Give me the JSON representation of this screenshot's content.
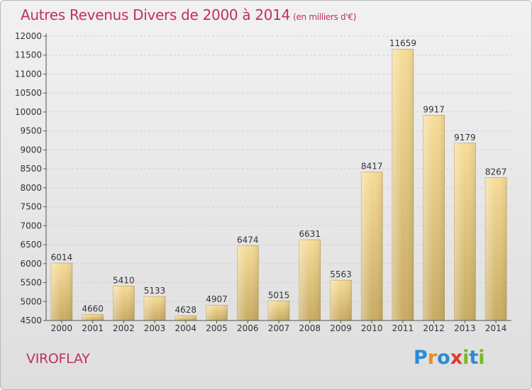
{
  "header": {
    "title": "Autres Revenus Divers de 2000 à 2014",
    "unit": "(en milliers d'€)"
  },
  "footer": {
    "commune": "VIROFLAY",
    "logo": {
      "text": "Proxiti",
      "letters": [
        {
          "ch": "P",
          "color": "#2a8bd4"
        },
        {
          "ch": "r",
          "color": "#f08a1c"
        },
        {
          "ch": "o",
          "color": "#2a8bd4"
        },
        {
          "ch": "x",
          "color": "#e23a2a"
        },
        {
          "ch": "i",
          "color": "#79b82a"
        },
        {
          "ch": "t",
          "color": "#2a8bd4"
        },
        {
          "ch": "i",
          "color": "#79b82a"
        }
      ]
    }
  },
  "colors": {
    "title": "#c0305a",
    "bar_light": "#f7dc98",
    "bar_dark": "#c8ab63",
    "axis": "#555555",
    "grid": "#cfcfcf",
    "text": "#333333"
  },
  "chart_data": {
    "type": "bar",
    "title": "Autres Revenus Divers de 2000 à 2014",
    "unit": "(en milliers d'€)",
    "categories": [
      "2000",
      "2001",
      "2002",
      "2003",
      "2004",
      "2005",
      "2006",
      "2007",
      "2008",
      "2009",
      "2010",
      "2011",
      "2012",
      "2013",
      "2014"
    ],
    "values": [
      6014,
      4660,
      5410,
      5133,
      4628,
      4907,
      6474,
      5015,
      6631,
      5563,
      8417,
      11659,
      9917,
      9179,
      8267
    ],
    "ylim": [
      4500,
      12000
    ],
    "yticks": [
      4500,
      5000,
      5500,
      6000,
      6500,
      7000,
      7500,
      8000,
      8500,
      9000,
      9500,
      10000,
      10500,
      11000,
      11500,
      12000
    ],
    "grid": true,
    "data_labels": true
  }
}
